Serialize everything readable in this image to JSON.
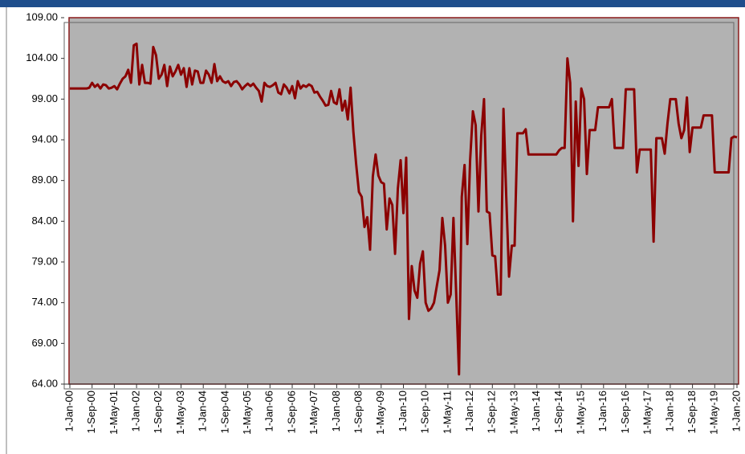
{
  "chart_data": {
    "type": "line",
    "color": "#8b0000",
    "ylim": [
      64,
      109
    ],
    "yticks": [
      {
        "value": 64,
        "label": "64.00"
      },
      {
        "value": 69,
        "label": "69.00"
      },
      {
        "value": 74,
        "label": "74.00"
      },
      {
        "value": 79,
        "label": "79.00"
      },
      {
        "value": 84,
        "label": "84.00"
      },
      {
        "value": 89,
        "label": "89.00"
      },
      {
        "value": 94,
        "label": "94.00"
      },
      {
        "value": 99,
        "label": "99.00"
      },
      {
        "value": 104,
        "label": "104.00"
      },
      {
        "value": 109,
        "label": "109.00"
      }
    ],
    "categories": [
      "1-Jan-00",
      null,
      null,
      null,
      null,
      null,
      null,
      null,
      "1-Sep-00",
      null,
      null,
      null,
      null,
      null,
      null,
      null,
      "1-May-01",
      null,
      null,
      null,
      null,
      null,
      null,
      null,
      "1-Jan-02",
      null,
      null,
      null,
      null,
      null,
      null,
      null,
      "1-Sep-02",
      null,
      null,
      null,
      null,
      null,
      null,
      null,
      "1-May-03",
      null,
      null,
      null,
      null,
      null,
      null,
      null,
      "1-Jan-04",
      null,
      null,
      null,
      null,
      null,
      null,
      null,
      "1-Sep-04",
      null,
      null,
      null,
      null,
      null,
      null,
      null,
      "1-May-05",
      null,
      null,
      null,
      null,
      null,
      null,
      null,
      "1-Jan-06",
      null,
      null,
      null,
      null,
      null,
      null,
      null,
      "1-Sep-06",
      null,
      null,
      null,
      null,
      null,
      null,
      null,
      "1-May-07",
      null,
      null,
      null,
      null,
      null,
      null,
      null,
      "1-Jan-08",
      null,
      null,
      null,
      null,
      null,
      null,
      null,
      "1-Sep-08",
      null,
      null,
      null,
      null,
      null,
      null,
      null,
      "1-May-09",
      null,
      null,
      null,
      null,
      null,
      null,
      null,
      "1-Jan-10",
      null,
      null,
      null,
      null,
      null,
      null,
      null,
      "1-Sep-10",
      null,
      null,
      null,
      null,
      null,
      null,
      null,
      "1-May-11",
      null,
      null,
      null,
      null,
      null,
      null,
      null,
      "1-Jan-12",
      null,
      null,
      null,
      null,
      null,
      null,
      null,
      "1-Sep-12",
      null,
      null,
      null,
      null,
      null,
      null,
      null,
      "1-May-13",
      null,
      null,
      null,
      null,
      null,
      null,
      null,
      "1-Jan-14",
      null,
      null,
      null,
      null,
      null,
      null,
      null,
      "1-Sep-14",
      null,
      null,
      null,
      null,
      null,
      null,
      null,
      "1-May-15",
      null,
      null,
      null,
      null,
      null,
      null,
      null,
      "1-Jan-16",
      null,
      null,
      null,
      null,
      null,
      null,
      null,
      "1-Sep-16",
      null,
      null,
      null,
      null,
      null,
      null,
      null,
      "1-May-17",
      null,
      null,
      null,
      null,
      null,
      null,
      null,
      "1-Jan-18",
      null,
      null,
      null,
      null,
      null,
      null,
      null,
      "1-Sep-18",
      null,
      null,
      null,
      null,
      null,
      null,
      null,
      "1-May-19",
      null,
      null,
      null,
      null,
      null,
      null,
      null,
      "1-Jan-20"
    ],
    "values": [
      100.3,
      100.3,
      100.3,
      100.3,
      100.3,
      100.3,
      100.3,
      100.4,
      101,
      100.5,
      100.8,
      100.3,
      100.8,
      100.7,
      100.3,
      100.4,
      100.6,
      100.2,
      100.9,
      101.5,
      101.8,
      102.6,
      101,
      105.6,
      105.8,
      100.8,
      103.2,
      101,
      101,
      100.9,
      105.4,
      104.4,
      101.5,
      102,
      103.2,
      100.6,
      103,
      101.8,
      102.4,
      103.2,
      102,
      102.8,
      100.5,
      102.8,
      100.8,
      102.5,
      102.4,
      101,
      101,
      102.5,
      102,
      101,
      103.3,
      101.2,
      101.8,
      101.2,
      101,
      101.2,
      100.6,
      101.1,
      101.2,
      100.8,
      100.2,
      100.6,
      100.9,
      100.6,
      100.9,
      100.4,
      100,
      98.7,
      101,
      100.6,
      100.5,
      100.7,
      101,
      99.8,
      99.6,
      100.8,
      100.4,
      99.7,
      100.6,
      99.1,
      101.2,
      100.3,
      100.7,
      100.5,
      100.8,
      100.6,
      99.8,
      99.9,
      99.3,
      98.8,
      98.2,
      98.3,
      100,
      98.6,
      98.4,
      100.2,
      97.6,
      98.8,
      96.5,
      100.4,
      95,
      91,
      87.6,
      87,
      83.3,
      84.5,
      80.5,
      89.5,
      92.2,
      89.6,
      88.8,
      88.6,
      83,
      86.8,
      86,
      80,
      88,
      91.5,
      85,
      91.8,
      72,
      78.5,
      75.5,
      74.6,
      78.8,
      80.3,
      74,
      73,
      73.3,
      74,
      76,
      78,
      84.4,
      81,
      74,
      75,
      84.4,
      75,
      65.2,
      87,
      90.9,
      81.2,
      91.5,
      97.5,
      95.8,
      85.2,
      94.5,
      99,
      85.2,
      85,
      79.8,
      79.7,
      75,
      75,
      97.8,
      87,
      77.2,
      81,
      81,
      94.8,
      94.8,
      94.8,
      95.3,
      92.2,
      92.2,
      92.2,
      92.2,
      92.2,
      92.2,
      92.2,
      92.2,
      92.2,
      92.2,
      92.2,
      92.7,
      93,
      93,
      104,
      101,
      84,
      98.7,
      90.8,
      100.3,
      99,
      89.8,
      95.2,
      95.2,
      95.2,
      98,
      98,
      98,
      98,
      98,
      99,
      93,
      93,
      93,
      93,
      100.2,
      100.2,
      100.2,
      100.2,
      90,
      92.8,
      92.8,
      92.8,
      92.8,
      92.8,
      81.5,
      94.2,
      94.2,
      94.2,
      92.3,
      96,
      99,
      99,
      99,
      96,
      94.2,
      95.2,
      99.2,
      92.5,
      95.5,
      95.5,
      95.5,
      95.5,
      97,
      97,
      97,
      97,
      90,
      90,
      90,
      90,
      90,
      90,
      94.2,
      94.4,
      94.3
    ]
  }
}
